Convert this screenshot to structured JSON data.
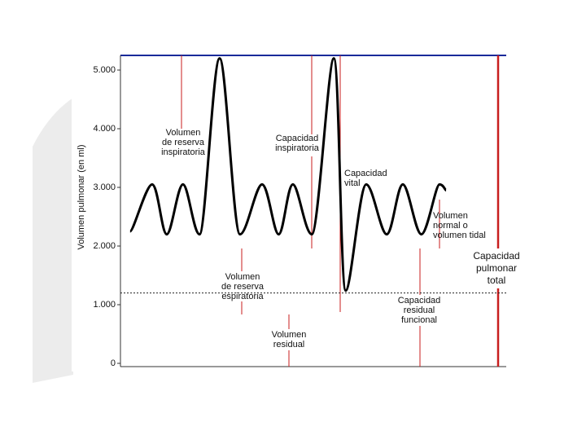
{
  "chart_data": {
    "type": "line",
    "y_label": "Volumen pulmonar (en ml)",
    "ylim": [
      0,
      5250
    ],
    "yticks": [
      0,
      {
        "value": 1000,
        "label": "1.000"
      },
      {
        "value": 2000,
        "label": "2.000"
      },
      {
        "value": 3000,
        "label": "3.000"
      },
      {
        "value": 4000,
        "label": "4.000"
      },
      {
        "value": 5000,
        "label": "5.000"
      }
    ],
    "xlim": [
      0,
      100
    ],
    "x": [
      2.5,
      8.2,
      12,
      16.2,
      20.5,
      25.7,
      31,
      36.7,
      41,
      44.7,
      49.6,
      55.3,
      58.4,
      63.7,
      69,
      73.2,
      78,
      82.7,
      84.4
    ],
    "series": [
      {
        "color": "#000000",
        "values": [
          2250,
          3050,
          2200,
          3050,
          2200,
          5200,
          2200,
          3050,
          2200,
          3050,
          2200,
          5200,
          1240,
          3050,
          2200,
          3050,
          2200,
          3050,
          2950
        ]
      }
    ],
    "residual_line": 1200,
    "annotations": [
      {
        "lines": [
          "Volumen",
          "de reserva",
          "inspiratoria"
        ]
      },
      {
        "lines": [
          "Capacidad",
          "inspiratoria"
        ]
      },
      {
        "lines": [
          "Capacidad",
          "vital"
        ]
      },
      {
        "lines": [
          "Volumen",
          "normal o",
          "volumen tidal"
        ]
      },
      {
        "lines": [
          "Capacidad",
          "pulmonar",
          "total"
        ]
      },
      {
        "lines": [
          "Volumen",
          "de reserva",
          "espiratoria"
        ]
      },
      {
        "lines": [
          "Capacidad",
          "residual",
          "funcional"
        ]
      },
      {
        "lines": [
          "Volumen",
          "residual"
        ]
      }
    ]
  }
}
